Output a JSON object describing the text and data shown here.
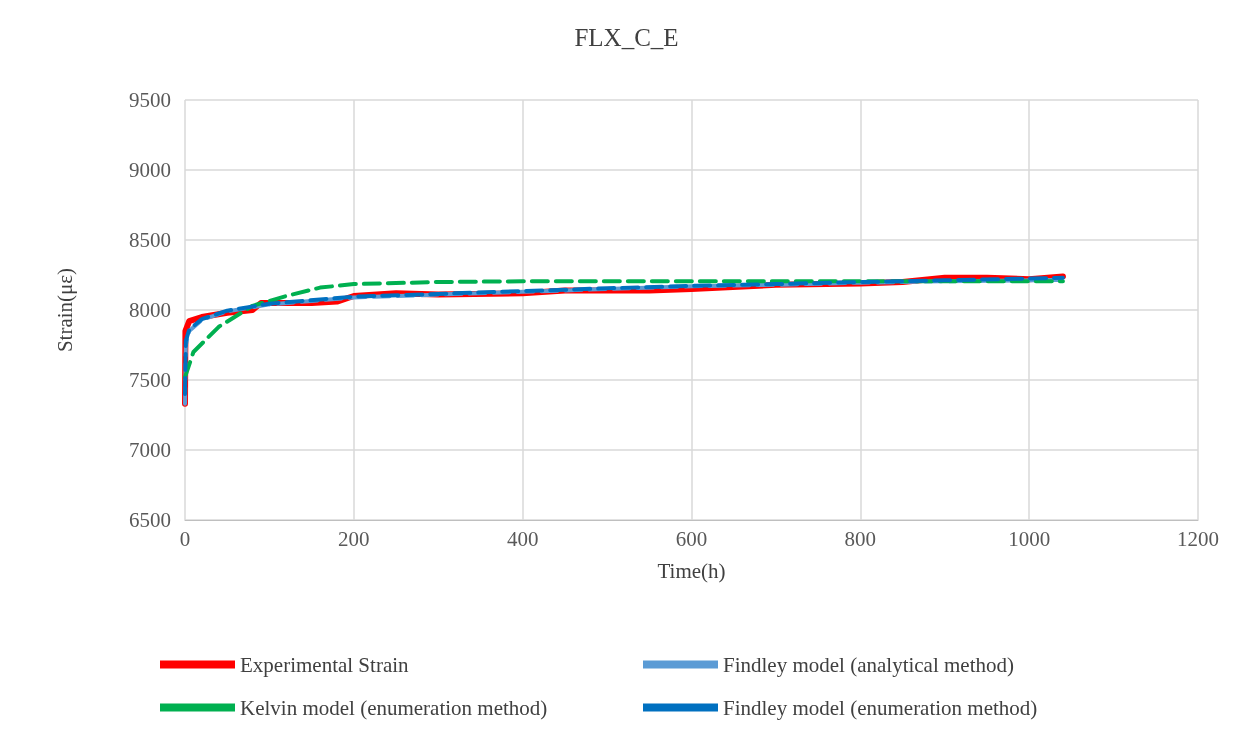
{
  "chart_data": {
    "type": "line",
    "title": "FLX_C_E",
    "xlabel": "Time(h)",
    "ylabel": "Strain(με)",
    "xlim": [
      0,
      1200
    ],
    "xticks": [
      0,
      200,
      400,
      600,
      800,
      1000,
      1200
    ],
    "ylim": [
      6500,
      9500
    ],
    "yticks": [
      6500,
      7000,
      7500,
      8000,
      8500,
      9000,
      9500
    ],
    "grid": true,
    "legend": "bottom",
    "marker": "none",
    "series": [
      {
        "name": "Experimental Strain",
        "color": "#ff0000",
        "line_style": "solid",
        "x": [
          0,
          0.5,
          5,
          20,
          50,
          80,
          90,
          150,
          180,
          200,
          250,
          300,
          400,
          450,
          550,
          600,
          700,
          800,
          850,
          900,
          950,
          1000,
          1040
        ],
        "values": [
          7330,
          7850,
          7920,
          7950,
          7980,
          8000,
          8050,
          8050,
          8060,
          8100,
          8120,
          8110,
          8120,
          8140,
          8140,
          8150,
          8180,
          8190,
          8200,
          8230,
          8230,
          8220,
          8240
        ]
      },
      {
        "name": "Findley model (analytical method)",
        "color": "#5b9bd5",
        "line_style": "dashed",
        "x": [
          0,
          1,
          5,
          20,
          50,
          100,
          200,
          300,
          400,
          500,
          600,
          700,
          800,
          900,
          1040
        ],
        "values": [
          7330,
          7750,
          7850,
          7930,
          7990,
          8040,
          8090,
          8110,
          8130,
          8150,
          8170,
          8180,
          8195,
          8205,
          8215
        ]
      },
      {
        "name": "Kelvin model (enumeration method)",
        "color": "#00b050",
        "line_style": "dashed",
        "x": [
          0,
          10,
          40,
          80,
          120,
          160,
          200,
          300,
          400,
          600,
          800,
          1040
        ],
        "values": [
          7520,
          7700,
          7880,
          8030,
          8100,
          8160,
          8185,
          8200,
          8205,
          8205,
          8205,
          8205
        ]
      },
      {
        "name": "Findley model (enumeration method)",
        "color": "#0070c0",
        "line_style": "dashed",
        "x": [
          0,
          1,
          5,
          20,
          50,
          100,
          200,
          300,
          400,
          500,
          600,
          700,
          800,
          900,
          1040
        ],
        "values": [
          7400,
          7780,
          7860,
          7935,
          7995,
          8045,
          8095,
          8115,
          8135,
          8155,
          8172,
          8185,
          8200,
          8212,
          8230
        ]
      }
    ]
  }
}
